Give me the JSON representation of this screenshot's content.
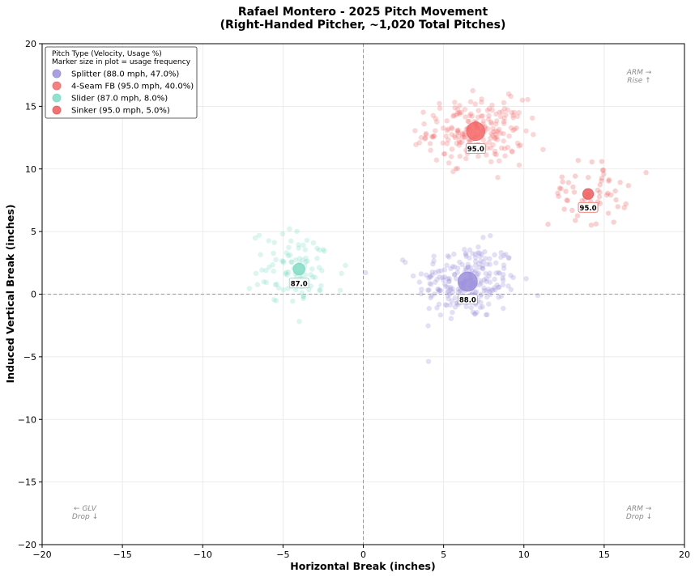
{
  "chart_data": {
    "type": "scatter",
    "title": [
      "Rafael Montero - 2025 Pitch Movement",
      "(Right-Handed Pitcher, ~1,020 Total Pitches)"
    ],
    "xlabel": "Horizontal Break (inches)",
    "ylabel": "Induced Vertical Break (inches)",
    "xlim": [
      -20,
      20
    ],
    "ylim": [
      -20,
      20
    ],
    "xticks": [
      "−20",
      "−15",
      "−10",
      "−5",
      "0",
      "5",
      "10",
      "15",
      "20"
    ],
    "yticks": [
      "−20",
      "−15",
      "−10",
      "−5",
      "0",
      "5",
      "10",
      "15",
      "20"
    ],
    "xtick_values": [
      -20,
      -15,
      -10,
      -5,
      0,
      5,
      10,
      15,
      20
    ],
    "ytick_values": [
      -20,
      -15,
      -10,
      -5,
      0,
      5,
      10,
      15,
      20
    ],
    "grid": true,
    "reference_lines": {
      "x": 0,
      "y": 0
    },
    "legend": {
      "placement": "top-left",
      "title_lines": [
        "Pitch Type (Velocity, Usage %)",
        "Marker size in plot = usage frequency"
      ]
    },
    "corner_annotations": [
      {
        "lines": [
          "ARM →",
          "Rise ↑"
        ],
        "position": "top-right"
      },
      {
        "lines": [
          "← GLV",
          "Drop ↓"
        ],
        "position": "bottom-left"
      },
      {
        "lines": [
          "ARM →",
          "Drop ↓"
        ],
        "position": "bottom-right"
      }
    ],
    "series": [
      {
        "name": "Splitter (88.0 mph, 47.0%)",
        "pitch": "Splitter",
        "velocity": 88.0,
        "velocity_label": "88.0",
        "usage": 47.0,
        "color": "#9b8fdc",
        "center": [
          6.5,
          1.0
        ],
        "spread": [
          2.1,
          1.9
        ],
        "count": 240
      },
      {
        "name": "4-Seam FB (95.0 mph, 40.0%)",
        "pitch": "4-Seam FB",
        "velocity": 95.0,
        "velocity_label": "95.0",
        "usage": 40.0,
        "color": "#f46a6a",
        "center": [
          7.0,
          13.0
        ],
        "spread": [
          2.0,
          1.6
        ],
        "count": 210
      },
      {
        "name": "Slider (87.0 mph, 8.0%)",
        "pitch": "Slider",
        "velocity": 87.0,
        "velocity_label": "87.0",
        "usage": 8.0,
        "color": "#7fdcc4",
        "center": [
          -4.0,
          2.0
        ],
        "spread": [
          2.0,
          1.9
        ],
        "count": 90
      },
      {
        "name": "Sinker (95.0 mph, 5.0%)",
        "pitch": "Sinker",
        "velocity": 95.0,
        "velocity_label": "95.0",
        "usage": 5.0,
        "color": "#ee5a5a",
        "center": [
          14.0,
          8.0
        ],
        "spread": [
          1.6,
          1.6
        ],
        "count": 55
      }
    ]
  }
}
